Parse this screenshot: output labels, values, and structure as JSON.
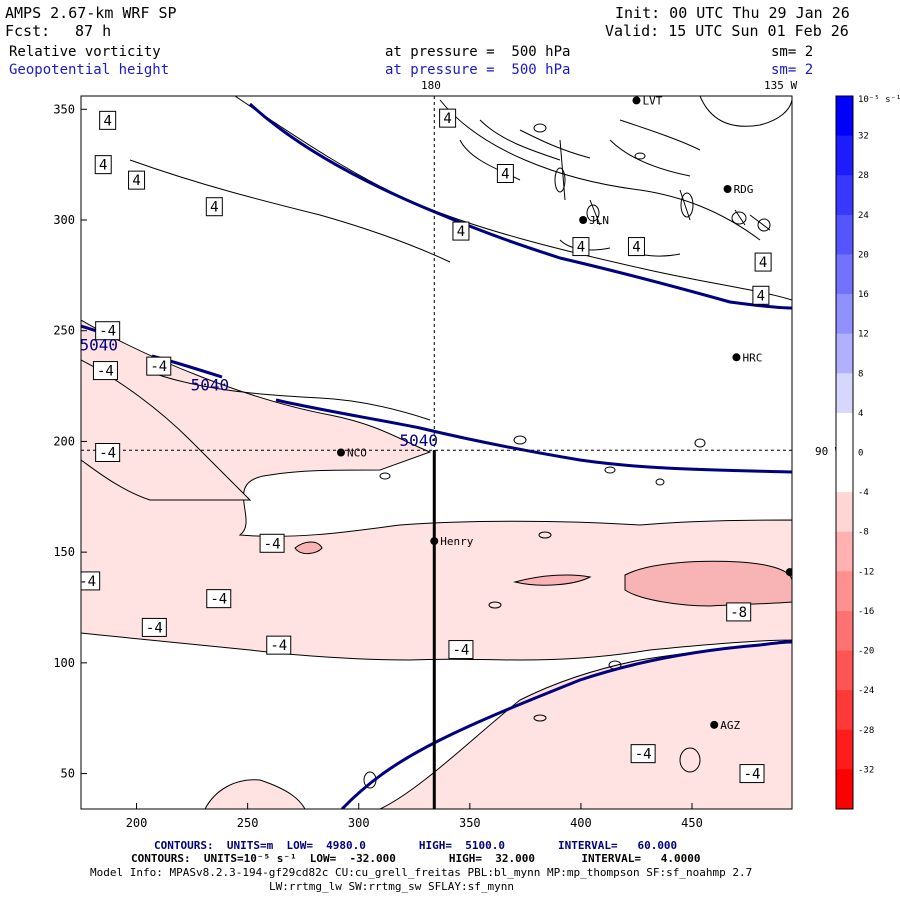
{
  "header": {
    "model": "AMPS 2.67-km WRF SP",
    "init": "Init: 00 UTC Thu 29 Jan 26",
    "fcst_label": "Fcst:",
    "fcst_value": "87 h",
    "valid": "Valid: 15 UTC Sun 01 Feb 26",
    "field1": {
      "name": "Relative vorticity",
      "level": "at pressure =  500 hPa",
      "sm": "sm= 2"
    },
    "field2": {
      "name": "Geopotential height",
      "level": "at pressure =  500 hPa",
      "sm": "sm= 2"
    }
  },
  "map_labels": {
    "top_lon1": "180",
    "top_lon2": "135 W",
    "right_lon": "90 W"
  },
  "stations": [
    {
      "name": "LVT",
      "x": 425,
      "y": 354
    },
    {
      "name": "RDG",
      "x": 466,
      "y": 314
    },
    {
      "name": "JLN",
      "x": 401,
      "y": 300
    },
    {
      "name": "HRC",
      "x": 470,
      "y": 238
    },
    {
      "name": "NCO",
      "x": 292,
      "y": 195
    },
    {
      "name": "Henry",
      "x": 334,
      "y": 155
    },
    {
      "name": "AGZ",
      "x": 460,
      "y": 72
    },
    {
      "name": "",
      "x": 494,
      "y": 141
    }
  ],
  "colorbar": {
    "unit": "10⁻⁵ s⁻¹",
    "tick_labels": [
      "32",
      "28",
      "24",
      "20",
      "16",
      "12",
      "8",
      "4",
      "0",
      "-4",
      "-8",
      "-12",
      "-16",
      "-20",
      "-24",
      "-28",
      "-32"
    ],
    "colors_top_to_bottom": [
      "#0000ff",
      "#1c1cff",
      "#3838ff",
      "#5555ff",
      "#7272ff",
      "#9090ff",
      "#b0b0ff",
      "#d6d6ff",
      "#ffffff",
      "#ffffff",
      "#ffd6d6",
      "#ffb0b0",
      "#ff9090",
      "#ff7272",
      "#ff5555",
      "#ff3838",
      "#ff1c1c",
      "#ff0000"
    ]
  },
  "contour_labels": [
    {
      "t": "4",
      "x": 187,
      "y": 345
    },
    {
      "t": "4",
      "x": 185,
      "y": 325
    },
    {
      "t": "4",
      "x": 200,
      "y": 318
    },
    {
      "t": "4",
      "x": 235,
      "y": 306
    },
    {
      "t": "4",
      "x": 340,
      "y": 346
    },
    {
      "t": "4",
      "x": 366,
      "y": 321
    },
    {
      "t": "4",
      "x": 346,
      "y": 295
    },
    {
      "t": "4",
      "x": 400,
      "y": 288
    },
    {
      "t": "4",
      "x": 425,
      "y": 288
    },
    {
      "t": "4",
      "x": 482,
      "y": 281
    },
    {
      "t": "4",
      "x": 481,
      "y": 266
    },
    {
      "t": "-4",
      "x": 187,
      "y": 250
    },
    {
      "t": "-4",
      "x": 186,
      "y": 232
    },
    {
      "t": "-4",
      "x": 210,
      "y": 234
    },
    {
      "t": "-4",
      "x": 187,
      "y": 195
    },
    {
      "t": "-4",
      "x": 261,
      "y": 154
    },
    {
      "t": "-4",
      "x": 178,
      "y": 137
    },
    {
      "t": "-4",
      "x": 237,
      "y": 129
    },
    {
      "t": "-4",
      "x": 208,
      "y": 116
    },
    {
      "t": "-4",
      "x": 264,
      "y": 108
    },
    {
      "t": "-4",
      "x": 346,
      "y": 106
    },
    {
      "t": "-8",
      "x": 471,
      "y": 123
    },
    {
      "t": "-4",
      "x": 428,
      "y": 59
    },
    {
      "t": "-4",
      "x": 477,
      "y": 50
    }
  ],
  "height_labels": [
    {
      "t": "5040",
      "x": 183,
      "y": 241
    },
    {
      "t": "5040",
      "x": 233,
      "y": 223
    },
    {
      "t": "5040",
      "x": 327,
      "y": 198
    }
  ],
  "chart_data": {
    "type": "contour-map",
    "x_ticks": [
      200,
      250,
      300,
      350,
      400,
      450
    ],
    "y_ticks": [
      50,
      100,
      150,
      200,
      250,
      300,
      350
    ],
    "xlim": [
      175,
      495
    ],
    "ylim": [
      34,
      356
    ],
    "crosshair": {
      "x": 334,
      "y": 196
    },
    "cross_section": {
      "x": 334,
      "y0": 34,
      "y1": 196
    },
    "height_contour_interval": 60,
    "vorticity_contour_interval": 4
  },
  "footer": {
    "line1_label": "CONTOURS:  UNITS=m  LOW=  4980.0        HIGH=  5100.0        INTERVAL=   60.000",
    "line2_label": "CONTOURS:  UNITS=10⁻⁵ s⁻¹  LOW=  -32.000        HIGH=  32.000       INTERVAL=   4.0000",
    "line3": "Model Info: MPASv8.2.3-194-gf29cd82c CU:cu_grell_freitas PBL:bl_mynn MP:mp_thompson SF:sf_noahmp 2.7",
    "line4": "LW:rrtmg_lw SW:rrtmg_sw SFLAY:sf_mynn"
  }
}
